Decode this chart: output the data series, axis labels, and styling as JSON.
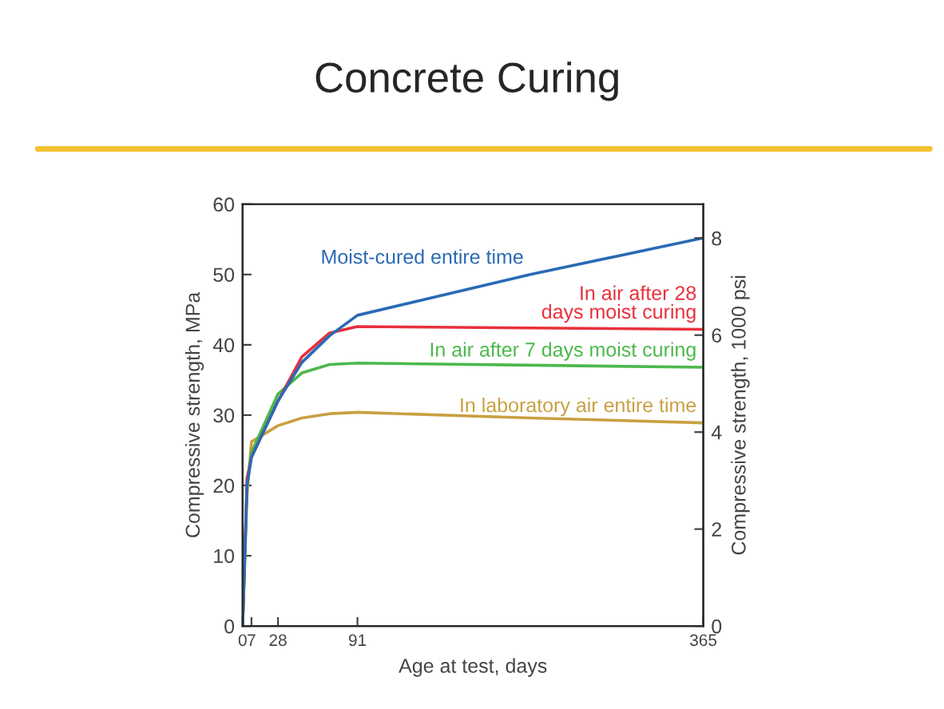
{
  "chart_data": {
    "type": "line",
    "title": "Concrete Curing",
    "xlabel": "Age at test, days",
    "ylabel": "Compressive strength, MPa",
    "y2label": "Compressive strength, 1000 psi",
    "x": [
      0,
      3.5,
      7,
      28,
      47,
      69,
      91,
      228,
      365
    ],
    "series": [
      {
        "name": "Moist-cured entire time",
        "color": "#2a6ab5",
        "values": [
          0,
          20,
          24,
          32,
          37.5,
          41.3,
          44.2,
          50,
          55.2
        ]
      },
      {
        "name": "In air after 28\ndays moist curing",
        "color": "#e8303c",
        "values": [
          0,
          21,
          24,
          32,
          38.3,
          41.7,
          42.6,
          42.4,
          42.2
        ]
      },
      {
        "name": "In air after 7 days moist curing",
        "color": "#4cb84c",
        "values": [
          0,
          20,
          24.7,
          33,
          36,
          37.2,
          37.4,
          37.1,
          36.8
        ]
      },
      {
        "name": "In laboratory air entire time",
        "color": "#c8a040",
        "values": [
          0,
          18.7,
          26.2,
          28.5,
          29.6,
          30.2,
          30.4,
          29.6,
          28.9
        ]
      }
    ],
    "xlim": [
      0,
      365
    ],
    "xticks": [
      0,
      7,
      28,
      91,
      365
    ],
    "ylim": [
      0,
      60
    ],
    "yticks": [
      0,
      10,
      20,
      30,
      40,
      50,
      60
    ],
    "y2lim": [
      0,
      8.7
    ],
    "y2ticks": [
      0,
      2,
      4,
      6,
      8
    ],
    "grid": false,
    "legend": false,
    "marker": "none",
    "line_style": "solid"
  }
}
